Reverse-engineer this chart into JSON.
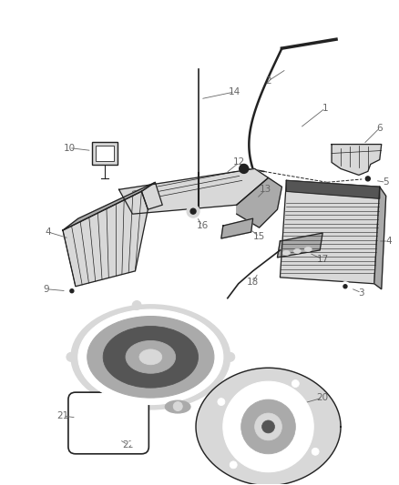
{
  "bg_color": "#ffffff",
  "lc": "#222222",
  "fc_light": "#d8d8d8",
  "fc_mid": "#aaaaaa",
  "fc_dark": "#555555",
  "labelc": "#666666",
  "fs": 7.5,
  "lw": 0.9
}
